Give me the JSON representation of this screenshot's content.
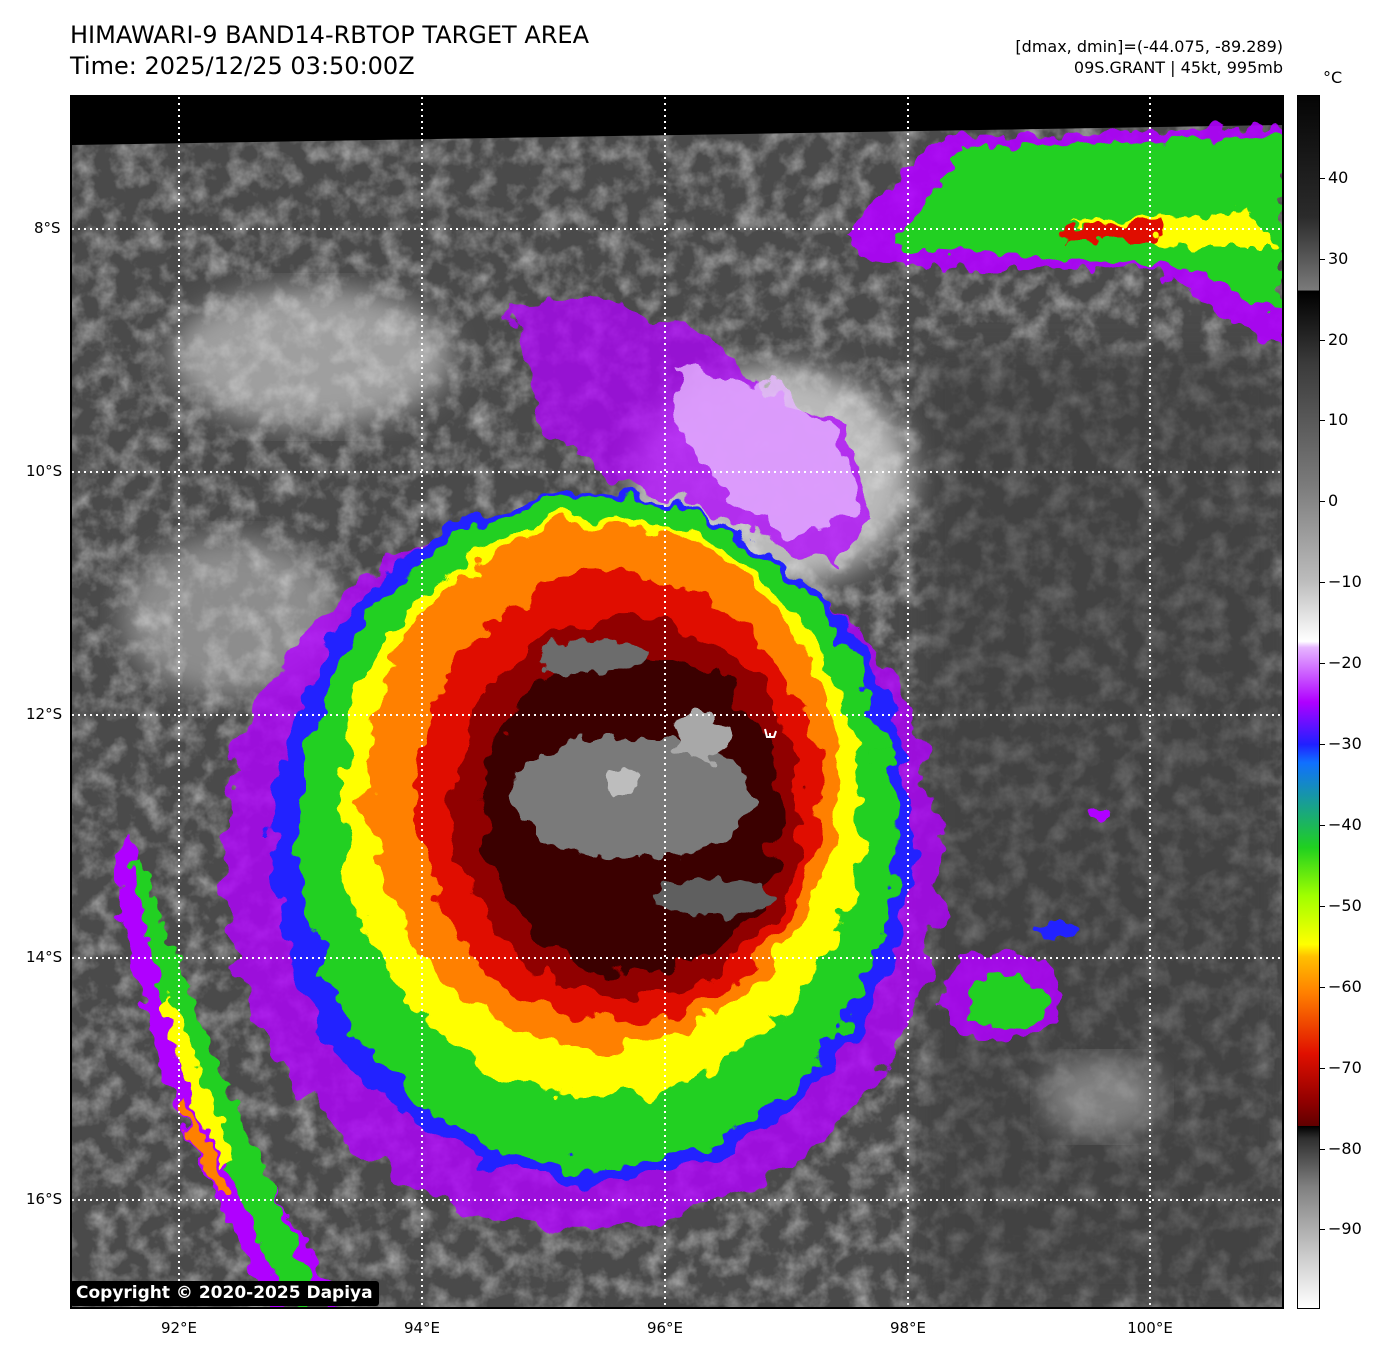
{
  "header": {
    "title": "HIMAWARI-9 BAND14-RBTOP TARGET AREA",
    "time": "Time: 2025/12/25 03:50:00Z",
    "dminmax": "[dmax, dmin]=(-44.075, -89.289)",
    "storm": "09S.GRANT | 45kt, 995mb"
  },
  "map": {
    "lat_labels": [
      "8°S",
      "10°S",
      "12°S",
      "14°S",
      "16°S"
    ],
    "lon_labels": [
      "92°E",
      "94°E",
      "96°E",
      "98°E",
      "100°E"
    ],
    "gridlines": "dotted white",
    "storm_center_marker": "white hook symbol near 12.2°S 96.8°E"
  },
  "colorbar": {
    "unit": "°C",
    "ticks": [
      "40",
      "30",
      "20",
      "10",
      "0",
      "−10",
      "−20",
      "−30",
      "−40",
      "−50",
      "−60",
      "−70",
      "−80",
      "−90"
    ],
    "colors": {
      "warm_gray_top": "#2b2b2b",
      "cloud_white": "#f2f2f2",
      "purple": "#b000ff",
      "blue": "#2020ff",
      "green": "#20d020",
      "yellow": "#ffff00",
      "orange": "#ff8000",
      "red": "#e01000",
      "dark_red": "#600000",
      "coldest_gray": "#808080"
    }
  },
  "copyright": "Copyright © 2020-2025 Dapiya"
}
